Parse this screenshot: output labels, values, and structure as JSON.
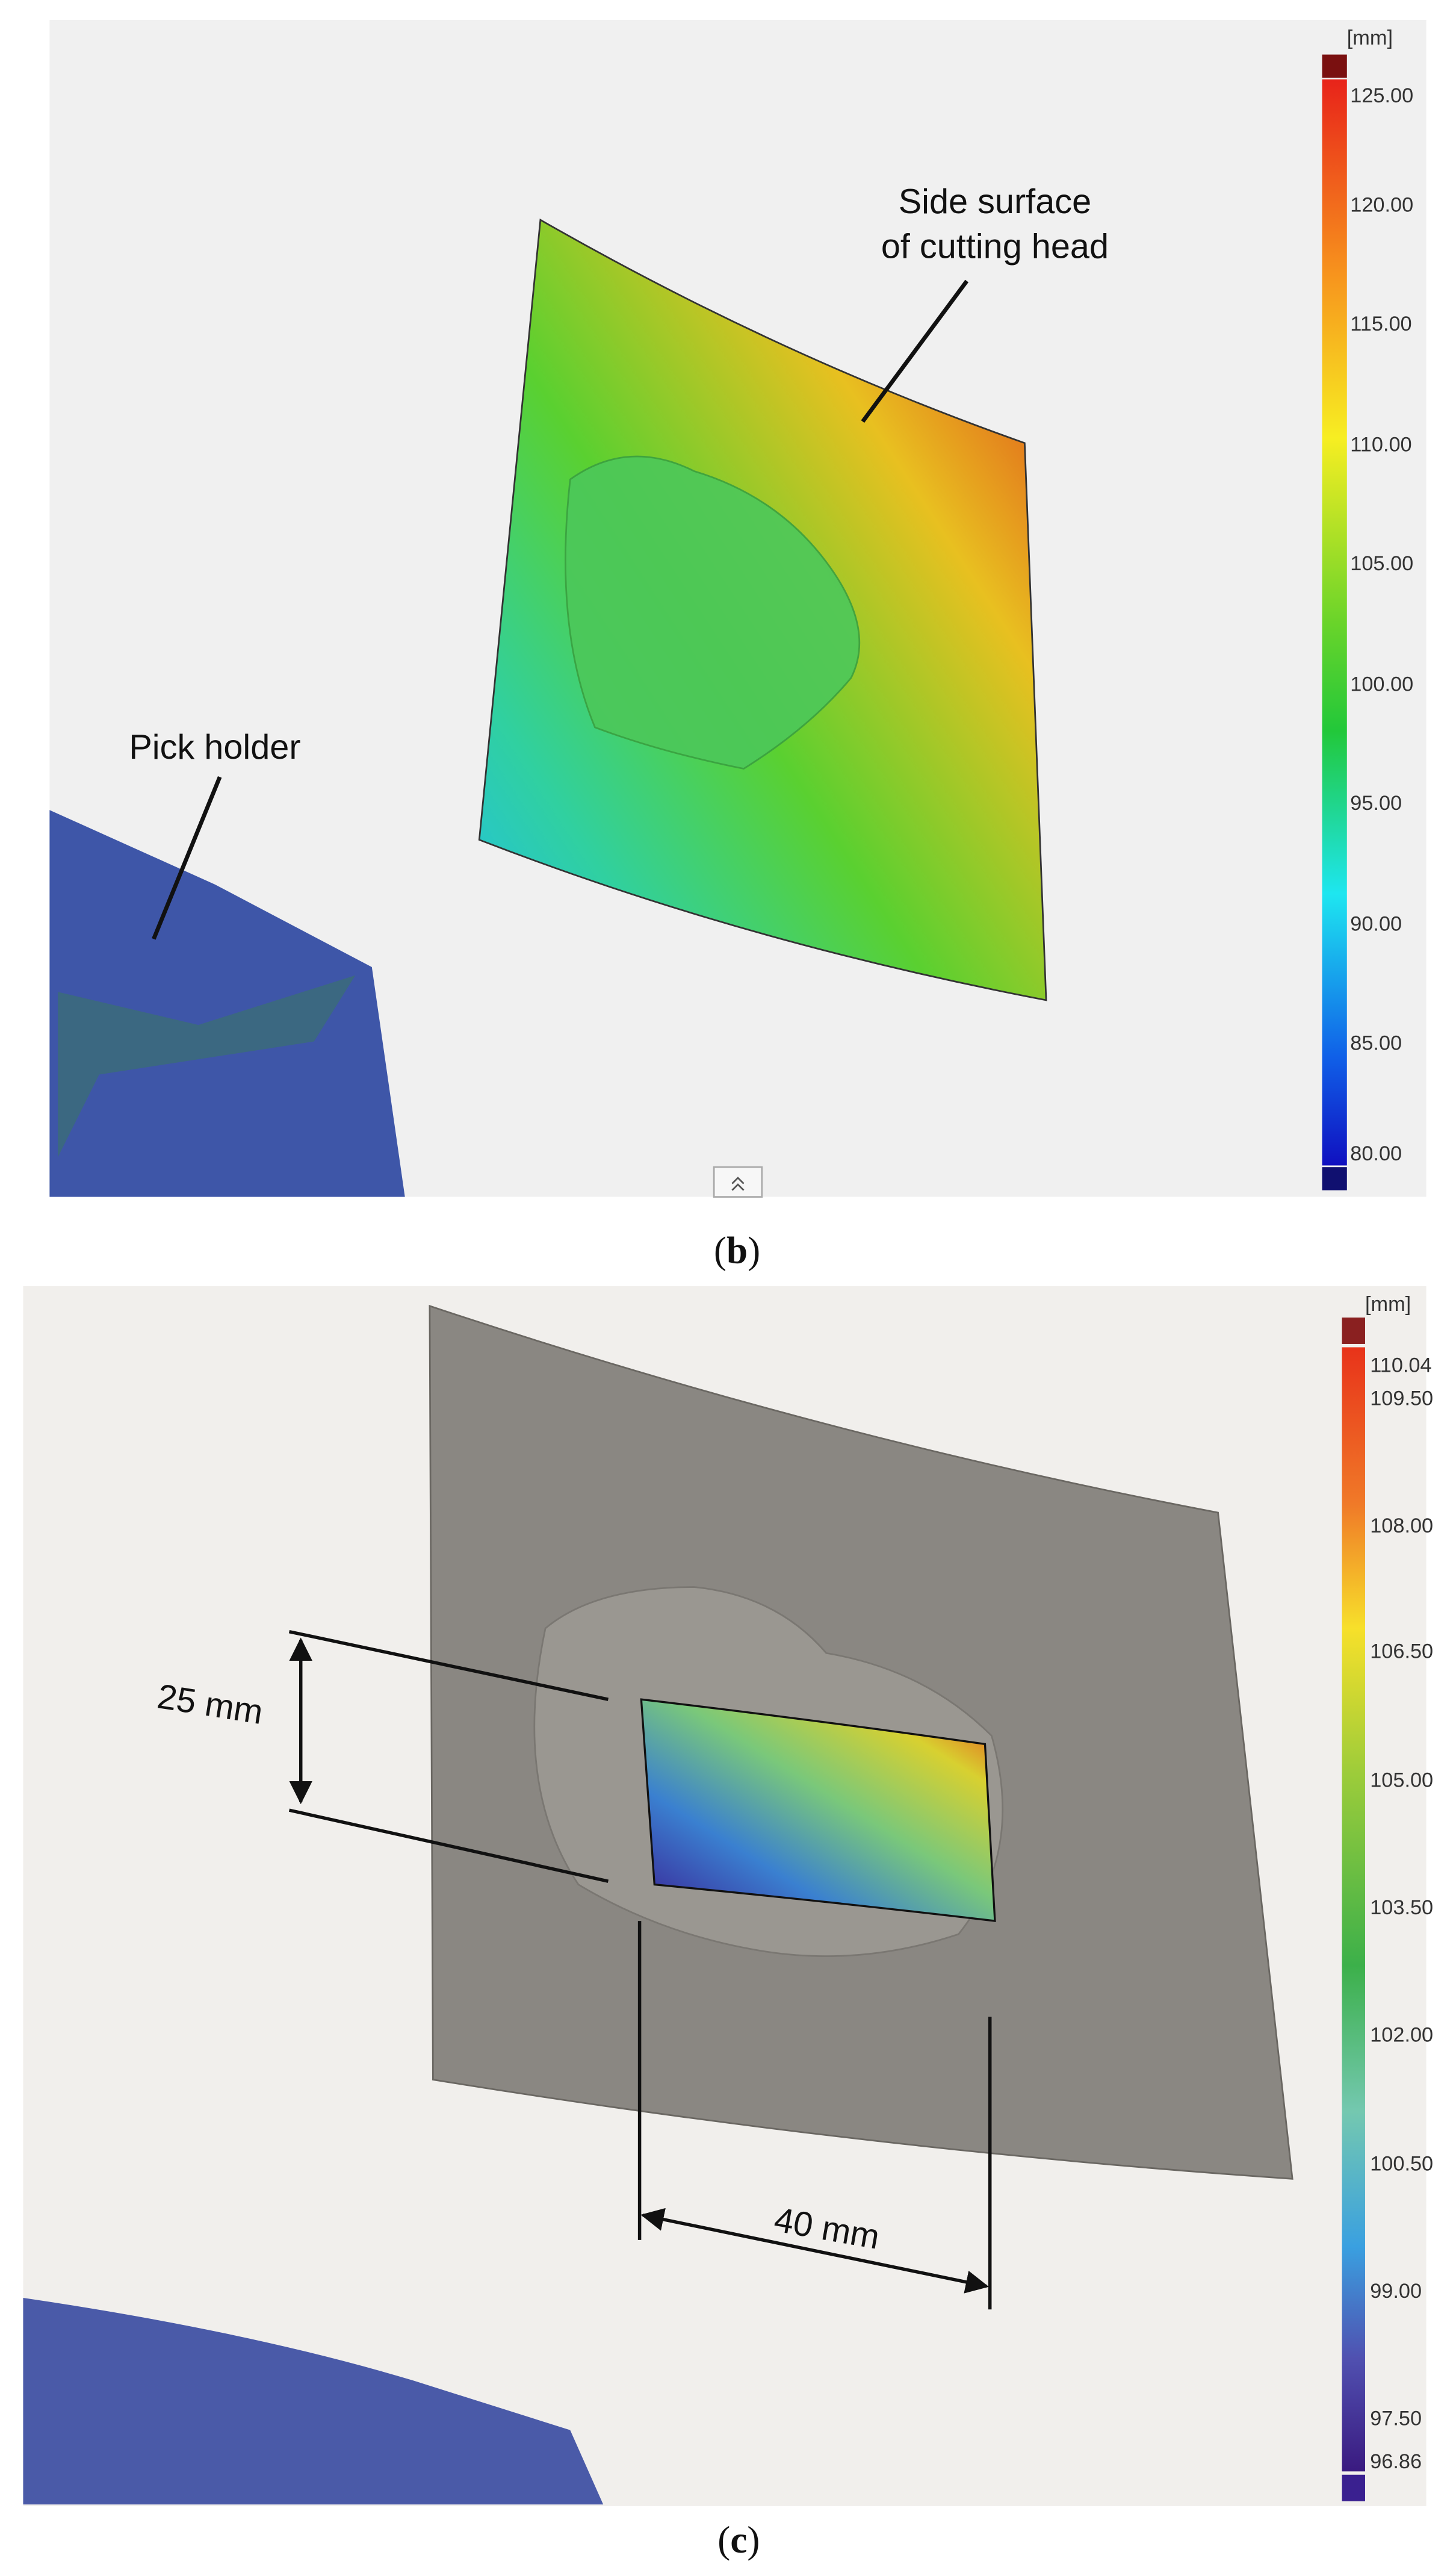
{
  "panels": [
    {
      "caption": [
        "(",
        "b",
        ")"
      ],
      "scale": {
        "unit": "[mm]",
        "labels": [
          "125.00",
          "120.00",
          "115.00",
          "110.00",
          "105.00",
          "100.00",
          "95.00",
          "90.00",
          "85.00",
          "80.00"
        ]
      },
      "annotations": [
        "Side surface",
        "of cutting head",
        "Pick holder"
      ]
    },
    {
      "caption": [
        "(",
        "c",
        ")"
      ],
      "scale": {
        "unit": "[mm]",
        "labels": [
          "110.04",
          "109.50",
          "108.00",
          "106.50",
          "105.00",
          "103.50",
          "102.00",
          "100.50",
          "99.00",
          "97.50",
          "96.86"
        ]
      },
      "annotations": [
        "25 mm",
        "40 mm"
      ]
    }
  ]
}
